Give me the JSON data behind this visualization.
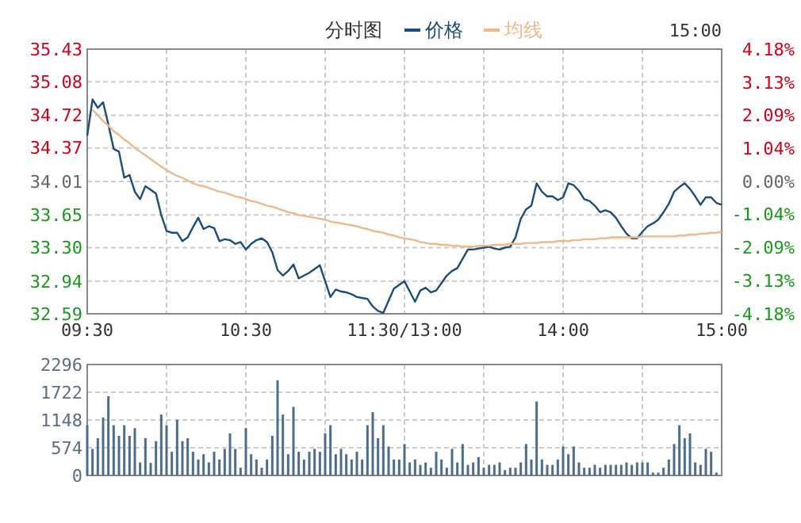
{
  "chart_data": [
    {
      "type": "line",
      "title": "分时图",
      "annotations": [
        "15:00"
      ],
      "legend": "top",
      "grid": true,
      "categories": [
        "09:30",
        null,
        null,
        null,
        null,
        null,
        null,
        null,
        null,
        null,
        null,
        null,
        null,
        null,
        null,
        null,
        null,
        null,
        null,
        null,
        null,
        null,
        null,
        null,
        null,
        null,
        null,
        null,
        null,
        null,
        "10:30",
        null,
        null,
        null,
        null,
        null,
        null,
        null,
        null,
        null,
        null,
        null,
        null,
        null,
        null,
        null,
        null,
        null,
        null,
        null,
        null,
        null,
        null,
        null,
        null,
        null,
        null,
        null,
        null,
        null,
        "11:30/13:00",
        null,
        null,
        null,
        null,
        null,
        null,
        null,
        null,
        null,
        null,
        null,
        null,
        null,
        null,
        null,
        null,
        null,
        null,
        null,
        null,
        null,
        null,
        null,
        null,
        null,
        null,
        null,
        null,
        null,
        "14:00",
        null,
        null,
        null,
        null,
        null,
        null,
        null,
        null,
        null,
        null,
        null,
        null,
        null,
        null,
        null,
        null,
        null,
        null,
        null,
        null,
        null,
        null,
        null,
        null,
        null,
        null,
        null,
        null,
        null,
        "15:00"
      ],
      "ylim": [
        32.59,
        35.43
      ],
      "yticks": [
        32.59,
        32.94,
        {
          "value": 33.3,
          "label": "33.30"
        },
        33.65,
        34.01,
        34.37,
        34.72,
        35.08,
        35.43
      ],
      "y2lim": [
        -4.18,
        4.18
      ],
      "y2ticks": [
        {
          "value": -4.18,
          "label": "-4.18%"
        },
        {
          "value": -3.13,
          "label": "-3.13%"
        },
        {
          "value": -2.09,
          "label": "-2.09%"
        },
        {
          "value": -1.04,
          "label": "-1.04%"
        },
        {
          "value": 0,
          "label": "0.00%"
        },
        {
          "value": 1.04,
          "label": "1.04%"
        },
        {
          "value": 2.09,
          "label": "2.09%"
        },
        {
          "value": 3.13,
          "label": "3.13%"
        },
        {
          "value": 4.18,
          "label": "4.18%"
        }
      ],
      "series": [
        {
          "name": "价格",
          "color": "#1a4d7c",
          "values": [
            34.5,
            34.89,
            34.8,
            34.86,
            34.62,
            34.36,
            34.33,
            34.05,
            34.08,
            33.9,
            33.82,
            33.96,
            33.92,
            33.88,
            33.65,
            33.48,
            33.46,
            33.46,
            33.37,
            33.41,
            33.52,
            33.62,
            33.5,
            33.53,
            33.51,
            33.37,
            33.39,
            33.38,
            33.34,
            33.36,
            33.28,
            33.34,
            33.38,
            33.4,
            33.36,
            33.25,
            33.06,
            33.0,
            33.05,
            33.12,
            32.97,
            33.0,
            33.03,
            33.07,
            33.11,
            32.94,
            32.77,
            32.85,
            32.83,
            32.82,
            32.8,
            32.77,
            32.76,
            32.75,
            32.67,
            32.62,
            32.6,
            32.73,
            32.86,
            32.9,
            32.94,
            32.83,
            32.72,
            32.84,
            32.87,
            32.82,
            32.84,
            32.92,
            33.0,
            33.05,
            33.08,
            33.18,
            33.28,
            33.28,
            33.29,
            33.3,
            33.31,
            33.29,
            33.28,
            33.3,
            33.31,
            33.41,
            33.61,
            33.71,
            33.75,
            33.99,
            33.9,
            33.85,
            33.85,
            33.81,
            33.84,
            33.99,
            33.97,
            33.91,
            33.82,
            33.8,
            33.75,
            33.68,
            33.7,
            33.68,
            33.62,
            33.53,
            33.45,
            33.4,
            33.4,
            33.47,
            33.53,
            33.56,
            33.6,
            33.68,
            33.77,
            33.9,
            33.95,
            33.99,
            33.93,
            33.85,
            33.76,
            33.84,
            33.84,
            33.78,
            33.76
          ]
        },
        {
          "name": "均线",
          "color": "#f0b888",
          "values": [
            null,
            34.78,
            34.72,
            34.66,
            34.61,
            34.55,
            34.51,
            34.46,
            34.42,
            34.37,
            34.33,
            34.29,
            34.25,
            34.21,
            34.17,
            34.13,
            34.1,
            34.07,
            34.05,
            34.02,
            33.99,
            33.97,
            33.96,
            33.94,
            33.92,
            33.9,
            33.89,
            33.87,
            33.85,
            33.84,
            33.82,
            33.8,
            33.79,
            33.77,
            33.75,
            33.74,
            33.72,
            33.7,
            33.68,
            33.67,
            33.65,
            33.64,
            33.63,
            33.62,
            33.61,
            33.6,
            33.58,
            33.57,
            33.56,
            33.55,
            33.54,
            33.53,
            33.51,
            33.5,
            33.48,
            33.47,
            33.46,
            33.44,
            33.43,
            33.41,
            33.4,
            33.39,
            33.38,
            33.36,
            33.35,
            33.34,
            33.34,
            33.33,
            33.33,
            33.32,
            33.32,
            33.31,
            33.31,
            33.31,
            33.32,
            33.32,
            33.32,
            33.33,
            33.33,
            33.33,
            33.34,
            33.34,
            33.34,
            33.35,
            33.35,
            33.35,
            33.36,
            33.36,
            33.36,
            33.37,
            33.37,
            33.37,
            33.38,
            33.38,
            33.39,
            33.39,
            33.39,
            33.4,
            33.4,
            33.41,
            33.41,
            33.41,
            33.41,
            33.41,
            33.41,
            33.42,
            33.42,
            33.42,
            33.42,
            33.42,
            33.42,
            33.42,
            33.43,
            33.43,
            33.44,
            33.44,
            33.45,
            33.45,
            33.46,
            33.46,
            33.47
          ]
        }
      ]
    },
    {
      "type": "bar",
      "color": "#4d6d8c",
      "grid": true,
      "tick_labels": "y",
      "categories": [
        null,
        null,
        null,
        null,
        null,
        null,
        null,
        null,
        null,
        null,
        null,
        null,
        null,
        null,
        null,
        null,
        null,
        null,
        null,
        null,
        null,
        null,
        null,
        null,
        null,
        null,
        null,
        null,
        null,
        null,
        null,
        null,
        null,
        null,
        null,
        null,
        null,
        null,
        null,
        null,
        null,
        null,
        null,
        null,
        null,
        null,
        null,
        null,
        null,
        null,
        null,
        null,
        null,
        null,
        null,
        null,
        null,
        null,
        null,
        null,
        null,
        null,
        null,
        null,
        null,
        null,
        null,
        null,
        null,
        null,
        null,
        null,
        null,
        null,
        null,
        null,
        null,
        null,
        null,
        null,
        null,
        null,
        null,
        null,
        null,
        null,
        null,
        null,
        null,
        null,
        null,
        null,
        null,
        null,
        null,
        null,
        null,
        null,
        null,
        null,
        null,
        null,
        null,
        null,
        null,
        null,
        null,
        null,
        null,
        null,
        null,
        null,
        null,
        null,
        null,
        null,
        null,
        null,
        null,
        null,
        null
      ],
      "ylim": [
        0,
        2296
      ],
      "yticks": [
        0,
        574,
        1148,
        1722,
        2296
      ],
      "values": [
        1040,
        550,
        770,
        1200,
        1640,
        1040,
        820,
        1040,
        820,
        980,
        270,
        770,
        260,
        710,
        1260,
        1040,
        490,
        1150,
        710,
        770,
        490,
        330,
        440,
        270,
        490,
        330,
        550,
        870,
        550,
        160,
        980,
        440,
        330,
        160,
        330,
        820,
        1970,
        1260,
        440,
        1420,
        490,
        330,
        490,
        550,
        490,
        870,
        1040,
        440,
        550,
        440,
        330,
        490,
        330,
        1040,
        1310,
        770,
        1040,
        600,
        330,
        330,
        650,
        270,
        330,
        220,
        270,
        160,
        490,
        330,
        160,
        550,
        270,
        650,
        220,
        270,
        380,
        160,
        220,
        220,
        270,
        110,
        160,
        160,
        270,
        650,
        330,
        1530,
        330,
        220,
        220,
        330,
        600,
        440,
        600,
        270,
        160,
        160,
        220,
        160,
        220,
        220,
        220,
        220,
        270,
        220,
        270,
        270,
        270,
        60,
        60,
        160,
        330,
        650,
        1040,
        770,
        870,
        270,
        220,
        550,
        490,
        60,
        null
      ]
    }
  ]
}
